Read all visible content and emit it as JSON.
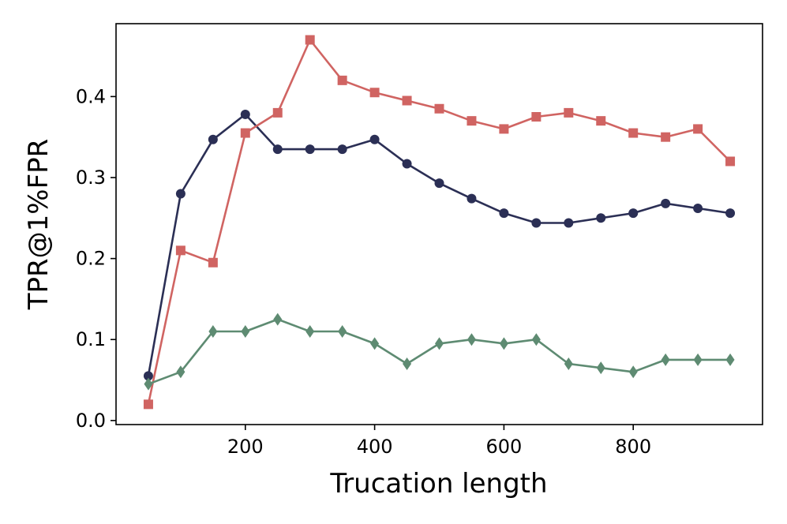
{
  "chart_data": {
    "type": "line",
    "xlabel": "Trucation length",
    "ylabel": "TPR@1%FPR",
    "xlim": [
      0,
      1000
    ],
    "ylim": [
      -0.005,
      0.49
    ],
    "x_ticks": [
      200,
      400,
      600,
      800
    ],
    "x_tick_labels": [
      "200",
      "400",
      "600",
      "800"
    ],
    "y_ticks": [
      0.0,
      0.1,
      0.2,
      0.3,
      0.4
    ],
    "y_tick_labels": [
      "0.0",
      "0.1",
      "0.2",
      "0.3",
      "0.4"
    ],
    "grid": false,
    "x": [
      50,
      100,
      150,
      200,
      250,
      300,
      350,
      400,
      450,
      500,
      550,
      600,
      650,
      700,
      750,
      800,
      850,
      900,
      950
    ],
    "series": [
      {
        "color": "#2b2f55",
        "marker": "circle",
        "values": [
          0.055,
          0.28,
          0.347,
          0.378,
          0.335,
          0.335,
          0.335,
          0.347,
          0.317,
          0.293,
          0.274,
          0.256,
          0.244,
          0.244,
          0.25,
          0.256,
          0.268,
          0.262,
          0.256
        ]
      },
      {
        "color": "#d06462",
        "marker": "square",
        "values": [
          0.02,
          0.21,
          0.195,
          0.355,
          0.38,
          0.47,
          0.42,
          0.405,
          0.395,
          0.385,
          0.37,
          0.36,
          0.375,
          0.38,
          0.37,
          0.355,
          0.35,
          0.36,
          0.32
        ]
      },
      {
        "color": "#5e8b72",
        "marker": "diamond",
        "values": [
          0.045,
          0.06,
          0.11,
          0.11,
          0.125,
          0.11,
          0.11,
          0.095,
          0.07,
          0.095,
          0.1,
          0.095,
          0.1,
          0.07,
          0.065,
          0.06,
          0.075,
          0.075,
          0.075
        ]
      }
    ]
  }
}
